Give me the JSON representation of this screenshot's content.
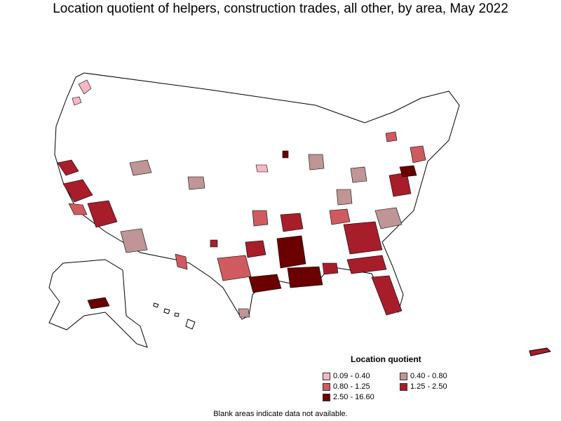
{
  "title": "Location quotient of helpers, construction trades, all other, by area, May 2022",
  "legend": {
    "title": "Location quotient",
    "items": [
      {
        "label": "0.09 - 0.40",
        "color": "#f7b7c4"
      },
      {
        "label": "0.40 - 0.80",
        "color": "#c09595"
      },
      {
        "label": "0.80 - 1.25",
        "color": "#cf5a5f"
      },
      {
        "label": "1.25 - 2.50",
        "color": "#a81d2a"
      },
      {
        "label": "2.50 - 16.60",
        "color": "#6b0000"
      }
    ]
  },
  "footnote": "Blank areas indicate data not available."
}
